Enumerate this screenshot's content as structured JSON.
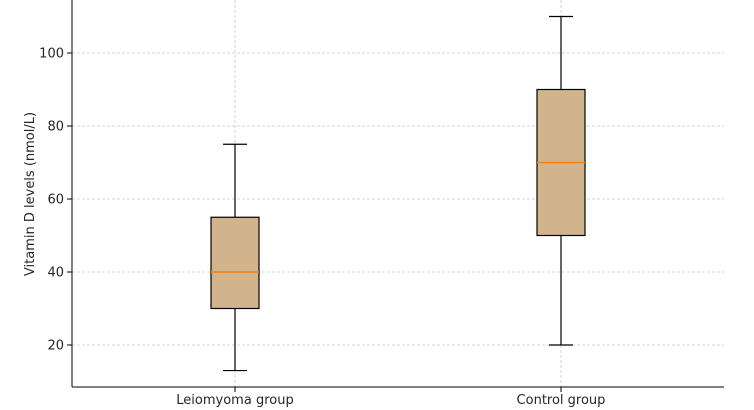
{
  "chart_data": {
    "type": "box",
    "title": "",
    "xlabel": "",
    "ylabel": "Vitamin D levels (nmol/L)",
    "ylim": [
      8,
      115
    ],
    "yticks": [
      20,
      40,
      60,
      80,
      100
    ],
    "grid": true,
    "categories": [
      "Leiomyoma group",
      "Control group"
    ],
    "boxes": [
      {
        "category": "Leiomyoma group",
        "whisker_low": 13,
        "q1": 30,
        "median": 40,
        "q3": 55,
        "whisker_high": 75
      },
      {
        "category": "Control group",
        "whisker_low": 20,
        "q1": 50,
        "median": 70,
        "q3": 90,
        "whisker_high": 110
      }
    ],
    "colors": {
      "box_fill": "#d2b48c",
      "median": "#ff7f0e",
      "edge": "#000000",
      "grid": "#c8c8c8"
    }
  }
}
